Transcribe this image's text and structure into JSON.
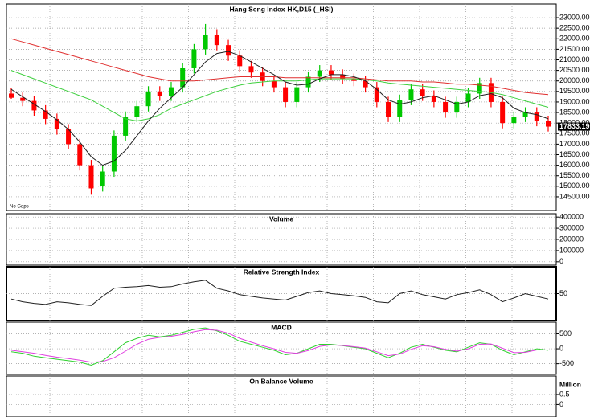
{
  "chart_data": [
    {
      "type": "candlestick",
      "title": "Hang Seng Index-HK,D15 (_HSI)",
      "annotation": "No Gaps",
      "up_color": "#00c800",
      "down_color": "#ff0000",
      "grid": true,
      "open": [
        19400,
        19200,
        19050,
        18600,
        18200,
        17700,
        17000,
        16000,
        15000,
        15700,
        17400,
        18300,
        18800,
        19500,
        19300,
        19700,
        20600,
        21500,
        22200,
        21700,
        21200,
        20700,
        20400,
        20000,
        19700,
        19000,
        19700,
        20200,
        20500,
        20300,
        20100,
        20000,
        19700,
        19000,
        18300,
        19100,
        19600,
        19300,
        19000,
        18500,
        19000,
        19400,
        19900,
        19000,
        18000,
        18300,
        18500,
        18100
      ],
      "high": [
        19650,
        19450,
        19300,
        18850,
        18450,
        17950,
        17250,
        16250,
        15950,
        17650,
        18550,
        19050,
        19750,
        19750,
        19950,
        20850,
        21750,
        22700,
        22450,
        21950,
        21450,
        20950,
        20650,
        20250,
        19950,
        19950,
        20450,
        20750,
        20750,
        20550,
        20350,
        20250,
        19950,
        19250,
        19350,
        19850,
        19850,
        19550,
        19250,
        19250,
        19650,
        20150,
        20150,
        19250,
        18550,
        18750,
        18750,
        18350
      ],
      "low": [
        19150,
        18800,
        18350,
        17950,
        17450,
        16750,
        15750,
        14600,
        14750,
        15450,
        17150,
        18050,
        18550,
        19050,
        19050,
        19450,
        20350,
        21250,
        21450,
        20950,
        20450,
        20150,
        19750,
        19450,
        18750,
        18750,
        19450,
        19950,
        20050,
        19850,
        19750,
        19450,
        18750,
        18050,
        18050,
        18850,
        19050,
        18750,
        18250,
        18250,
        18750,
        19150,
        18750,
        17750,
        17750,
        18050,
        17850,
        17600
      ],
      "close": [
        19200,
        19050,
        18600,
        18200,
        17700,
        17000,
        16000,
        14900,
        15700,
        17400,
        18300,
        18800,
        19500,
        19300,
        19700,
        20600,
        21500,
        22200,
        21700,
        21200,
        20700,
        20400,
        20000,
        19700,
        19000,
        19700,
        20200,
        20500,
        20300,
        20100,
        20000,
        19700,
        19000,
        18300,
        19100,
        19600,
        19300,
        19000,
        18500,
        19000,
        19400,
        19900,
        19000,
        18000,
        18300,
        18500,
        18100,
        17833.19
      ],
      "series": [
        {
          "color": "#e03030",
          "values": [
            22000,
            21850,
            21700,
            21550,
            21400,
            21250,
            21100,
            20950,
            20800,
            20650,
            20500,
            20350,
            20200,
            20100,
            20000,
            20000,
            20000,
            20050,
            20100,
            20150,
            20200,
            20200,
            20200,
            20200,
            20150,
            20150,
            20150,
            20150,
            20150,
            20150,
            20150,
            20100,
            20050,
            20000,
            20000,
            20000,
            19950,
            19950,
            19900,
            19850,
            19850,
            19800,
            19750,
            19650,
            19550,
            19450,
            19400,
            19350
          ]
        },
        {
          "color": "#40d040",
          "values": [
            20500,
            20300,
            20100,
            19900,
            19700,
            19500,
            19300,
            19100,
            18800,
            18500,
            18200,
            18100,
            18200,
            18400,
            18700,
            18900,
            19100,
            19300,
            19500,
            19650,
            19800,
            19900,
            19950,
            20000,
            20000,
            20000,
            20050,
            20100,
            20100,
            20100,
            20100,
            20050,
            20000,
            19900,
            19850,
            19800,
            19750,
            19700,
            19650,
            19600,
            19550,
            19500,
            19450,
            19350,
            19200,
            19050,
            18900,
            18750
          ]
        },
        {
          "color": "#202020",
          "values": [
            19600,
            19250,
            18900,
            18550,
            18150,
            17700,
            17100,
            16400,
            16000,
            16200,
            16700,
            17400,
            18100,
            18700,
            19200,
            19700,
            20300,
            20900,
            21300,
            21400,
            21200,
            20900,
            20600,
            20300,
            19950,
            19800,
            19850,
            20100,
            20300,
            20300,
            20200,
            20000,
            19600,
            19100,
            18900,
            19000,
            19200,
            19300,
            19100,
            18900,
            19000,
            19300,
            19400,
            19200,
            18700,
            18500,
            18400,
            18200
          ]
        }
      ],
      "ylim": [
        13850,
        23650
      ],
      "yticks": [
        {
          "value": 23000,
          "label": "23000.00"
        },
        {
          "value": 22500,
          "label": "22500.00"
        },
        {
          "value": 22000,
          "label": "22000.00"
        },
        {
          "value": 21500,
          "label": "21500.00"
        },
        {
          "value": 21000,
          "label": "21000.00"
        },
        {
          "value": 20500,
          "label": "20500.00"
        },
        {
          "value": 20000,
          "label": "20000.00"
        },
        {
          "value": 19500,
          "label": "19500.00"
        },
        {
          "value": 19000,
          "label": "19000.00"
        },
        {
          "value": 18500,
          "label": "18500.00"
        },
        {
          "value": 18000,
          "label": "18000.00"
        },
        {
          "value": 17500,
          "label": "17500.00"
        },
        {
          "value": 17000,
          "label": "17000.00"
        },
        {
          "value": 16500,
          "label": "16500.00"
        },
        {
          "value": 16000,
          "label": "16000.00"
        },
        {
          "value": 15500,
          "label": "15500.00"
        },
        {
          "value": 15000,
          "label": "15000.00"
        },
        {
          "value": 14500,
          "label": "14500.00"
        }
      ]
    },
    {
      "type": "bar",
      "title": "Volume",
      "grid": true,
      "ylim": [
        -30000,
        430000
      ],
      "yticks": [
        400000,
        300000,
        200000,
        100000,
        0
      ]
    },
    {
      "type": "line",
      "title": "Relative Strength Index",
      "grid": true,
      "ylim": [
        0,
        100
      ],
      "yticks": [
        50
      ],
      "series": [
        {
          "color": "#202020",
          "values": [
            40,
            35,
            32,
            30,
            35,
            33,
            30,
            28,
            45,
            60,
            62,
            63,
            65,
            62,
            63,
            68,
            72,
            75,
            60,
            55,
            48,
            45,
            42,
            40,
            38,
            45,
            52,
            55,
            50,
            48,
            46,
            43,
            35,
            33,
            50,
            55,
            48,
            44,
            40,
            48,
            52,
            57,
            48,
            35,
            42,
            50,
            45,
            40
          ]
        }
      ]
    },
    {
      "type": "line",
      "title": "MACD",
      "grid": true,
      "ylim": [
        -860,
        890
      ],
      "yticks": [
        500,
        0,
        -500
      ],
      "series": [
        {
          "color": "#30d030",
          "values": [
            -100,
            -150,
            -250,
            -300,
            -350,
            -400,
            -450,
            -550,
            -400,
            -100,
            200,
            350,
            450,
            400,
            450,
            550,
            650,
            700,
            600,
            450,
            250,
            150,
            50,
            -50,
            -200,
            -150,
            0,
            150,
            150,
            100,
            50,
            0,
            -150,
            -300,
            -150,
            50,
            150,
            50,
            -50,
            -100,
            50,
            200,
            150,
            -50,
            -200,
            -100,
            0,
            -50
          ]
        },
        {
          "color": "#e040e0",
          "values": [
            -50,
            -100,
            -150,
            -220,
            -280,
            -330,
            -380,
            -450,
            -430,
            -300,
            -80,
            150,
            320,
            380,
            420,
            480,
            570,
            640,
            620,
            520,
            350,
            220,
            100,
            0,
            -120,
            -150,
            -60,
            80,
            130,
            110,
            70,
            20,
            -100,
            -230,
            -180,
            -20,
            100,
            70,
            -20,
            -80,
            0,
            150,
            160,
            20,
            -130,
            -120,
            -40,
            -40
          ]
        }
      ]
    },
    {
      "type": "line",
      "title": "On Balance Volume",
      "grid": true,
      "y_label": "Million",
      "ylim": [
        -0.625,
        1.42
      ],
      "yticks": [
        0.5,
        0
      ]
    }
  ]
}
